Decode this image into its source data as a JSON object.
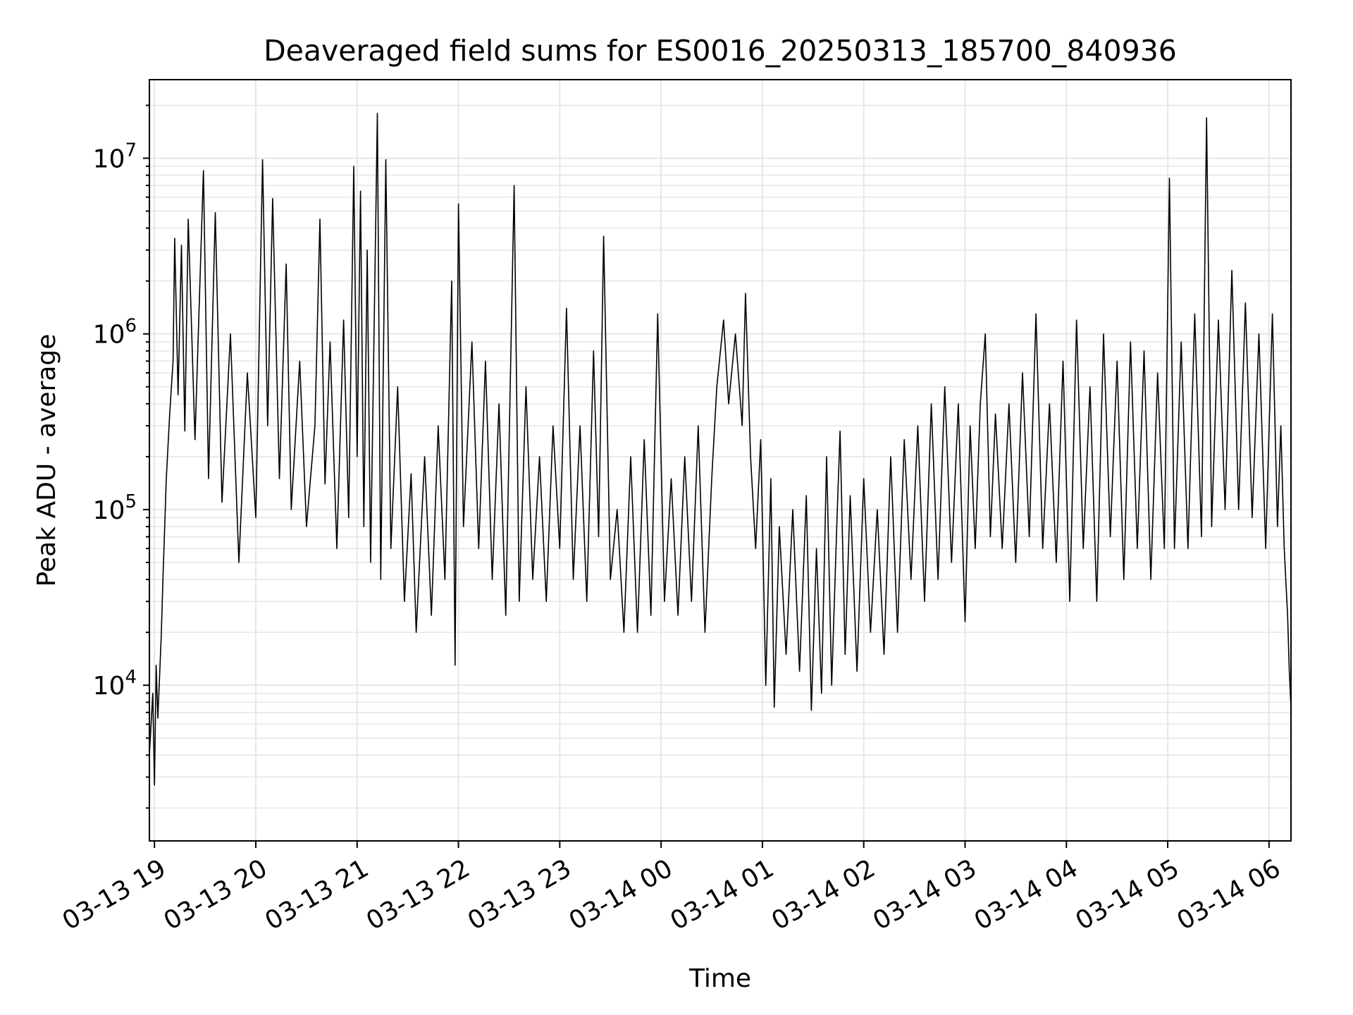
{
  "chart_data": {
    "type": "line",
    "title": "Deaveraged field sums for ES0016_20250313_185700_840936",
    "xlabel": "Time",
    "ylabel": "Peak ADU - average",
    "x_start": "2025-03-13 18:57",
    "x_end": "2025-03-14 06:13",
    "x_ticks": [
      "03-13 19",
      "03-13 20",
      "03-13 21",
      "03-13 22",
      "03-13 23",
      "03-14 00",
      "03-14 01",
      "03-14 02",
      "03-14 03",
      "03-14 04",
      "03-14 05",
      "03-14 06"
    ],
    "y_scale": "log",
    "y_ticks": [
      {
        "base": "10",
        "exp": "4"
      },
      {
        "base": "10",
        "exp": "5"
      },
      {
        "base": "10",
        "exp": "6"
      },
      {
        "base": "10",
        "exp": "7"
      }
    ],
    "ylim": [
      1300,
      28000000
    ],
    "grid": true,
    "line_color": "#000000",
    "grid_color": "#e6e6e6",
    "series": [
      {
        "points": [
          [
            "2025-03-13 18:57",
            4000
          ],
          [
            "2025-03-13 18:59",
            9000
          ],
          [
            "2025-03-13 19:00",
            2700
          ],
          [
            "2025-03-13 19:01",
            13000
          ],
          [
            "2025-03-13 19:02",
            6500
          ],
          [
            "2025-03-13 19:04",
            19000
          ],
          [
            "2025-03-13 19:05",
            40000
          ],
          [
            "2025-03-13 19:07",
            150000
          ],
          [
            "2025-03-13 19:09",
            350000
          ],
          [
            "2025-03-13 19:11",
            700000
          ],
          [
            "2025-03-13 19:12",
            3500000
          ],
          [
            "2025-03-13 19:14",
            450000
          ],
          [
            "2025-03-13 19:16",
            3200000
          ],
          [
            "2025-03-13 19:18",
            280000
          ],
          [
            "2025-03-13 19:20",
            4500000
          ],
          [
            "2025-03-13 19:24",
            250000
          ],
          [
            "2025-03-13 19:29",
            8500000
          ],
          [
            "2025-03-13 19:32",
            150000
          ],
          [
            "2025-03-13 19:36",
            4900000
          ],
          [
            "2025-03-13 19:40",
            110000
          ],
          [
            "2025-03-13 19:45",
            1000000
          ],
          [
            "2025-03-13 19:50",
            50000
          ],
          [
            "2025-03-13 19:55",
            600000
          ],
          [
            "2025-03-13 20:00",
            90000
          ],
          [
            "2025-03-13 20:04",
            9800000
          ],
          [
            "2025-03-13 20:07",
            300000
          ],
          [
            "2025-03-13 20:10",
            5900000
          ],
          [
            "2025-03-13 20:14",
            150000
          ],
          [
            "2025-03-13 20:18",
            2500000
          ],
          [
            "2025-03-13 20:21",
            100000
          ],
          [
            "2025-03-13 20:26",
            700000
          ],
          [
            "2025-03-13 20:30",
            80000
          ],
          [
            "2025-03-13 20:35",
            300000
          ],
          [
            "2025-03-13 20:38",
            4500000
          ],
          [
            "2025-03-13 20:41",
            140000
          ],
          [
            "2025-03-13 20:44",
            900000
          ],
          [
            "2025-03-13 20:48",
            60000
          ],
          [
            "2025-03-13 20:52",
            1200000
          ],
          [
            "2025-03-13 20:55",
            90000
          ],
          [
            "2025-03-13 20:58",
            9000000
          ],
          [
            "2025-03-13 21:00",
            200000
          ],
          [
            "2025-03-13 21:02",
            6500000
          ],
          [
            "2025-03-13 21:04",
            80000
          ],
          [
            "2025-03-13 21:06",
            3000000
          ],
          [
            "2025-03-13 21:08",
            50000
          ],
          [
            "2025-03-13 21:12",
            18000000
          ],
          [
            "2025-03-13 21:14",
            40000
          ],
          [
            "2025-03-13 21:17",
            9800000
          ],
          [
            "2025-03-13 21:20",
            60000
          ],
          [
            "2025-03-13 21:24",
            500000
          ],
          [
            "2025-03-13 21:28",
            30000
          ],
          [
            "2025-03-13 21:32",
            160000
          ],
          [
            "2025-03-13 21:35",
            20000
          ],
          [
            "2025-03-13 21:40",
            200000
          ],
          [
            "2025-03-13 21:44",
            25000
          ],
          [
            "2025-03-13 21:48",
            300000
          ],
          [
            "2025-03-13 21:52",
            40000
          ],
          [
            "2025-03-13 21:56",
            2000000
          ],
          [
            "2025-03-13 21:58",
            13000
          ],
          [
            "2025-03-13 22:00",
            5500000
          ],
          [
            "2025-03-13 22:03",
            80000
          ],
          [
            "2025-03-13 22:08",
            900000
          ],
          [
            "2025-03-13 22:12",
            60000
          ],
          [
            "2025-03-13 22:16",
            700000
          ],
          [
            "2025-03-13 22:20",
            40000
          ],
          [
            "2025-03-13 22:24",
            400000
          ],
          [
            "2025-03-13 22:28",
            25000
          ],
          [
            "2025-03-13 22:33",
            7000000
          ],
          [
            "2025-03-13 22:36",
            30000
          ],
          [
            "2025-03-13 22:40",
            500000
          ],
          [
            "2025-03-13 22:44",
            40000
          ],
          [
            "2025-03-13 22:48",
            200000
          ],
          [
            "2025-03-13 22:52",
            30000
          ],
          [
            "2025-03-13 22:56",
            300000
          ],
          [
            "2025-03-13 23:00",
            60000
          ],
          [
            "2025-03-13 23:04",
            1400000
          ],
          [
            "2025-03-13 23:08",
            40000
          ],
          [
            "2025-03-13 23:12",
            300000
          ],
          [
            "2025-03-13 23:16",
            30000
          ],
          [
            "2025-03-13 23:20",
            800000
          ],
          [
            "2025-03-13 23:23",
            70000
          ],
          [
            "2025-03-13 23:26",
            3600000
          ],
          [
            "2025-03-13 23:30",
            40000
          ],
          [
            "2025-03-13 23:34",
            100000
          ],
          [
            "2025-03-13 23:38",
            20000
          ],
          [
            "2025-03-13 23:42",
            200000
          ],
          [
            "2025-03-13 23:46",
            20000
          ],
          [
            "2025-03-13 23:50",
            250000
          ],
          [
            "2025-03-13 23:54",
            25000
          ],
          [
            "2025-03-13 23:58",
            1300000
          ],
          [
            "2025-03-14 00:02",
            30000
          ],
          [
            "2025-03-14 00:06",
            150000
          ],
          [
            "2025-03-14 00:10",
            25000
          ],
          [
            "2025-03-14 00:14",
            200000
          ],
          [
            "2025-03-14 00:18",
            30000
          ],
          [
            "2025-03-14 00:22",
            300000
          ],
          [
            "2025-03-14 00:26",
            20000
          ],
          [
            "2025-03-14 00:30",
            150000
          ],
          [
            "2025-03-14 00:33",
            500000
          ],
          [
            "2025-03-14 00:37",
            1200000
          ],
          [
            "2025-03-14 00:40",
            400000
          ],
          [
            "2025-03-14 00:44",
            1000000
          ],
          [
            "2025-03-14 00:48",
            300000
          ],
          [
            "2025-03-14 00:50",
            1700000
          ],
          [
            "2025-03-14 00:53",
            200000
          ],
          [
            "2025-03-14 00:56",
            60000
          ],
          [
            "2025-03-14 00:59",
            250000
          ],
          [
            "2025-03-14 01:02",
            10000
          ],
          [
            "2025-03-14 01:05",
            150000
          ],
          [
            "2025-03-14 01:07",
            7500
          ],
          [
            "2025-03-14 01:10",
            80000
          ],
          [
            "2025-03-14 01:14",
            15000
          ],
          [
            "2025-03-14 01:18",
            100000
          ],
          [
            "2025-03-14 01:22",
            12000
          ],
          [
            "2025-03-14 01:26",
            120000
          ],
          [
            "2025-03-14 01:29",
            7200
          ],
          [
            "2025-03-14 01:32",
            60000
          ],
          [
            "2025-03-14 01:35",
            9000
          ],
          [
            "2025-03-14 01:38",
            200000
          ],
          [
            "2025-03-14 01:41",
            10000
          ],
          [
            "2025-03-14 01:44",
            80000
          ],
          [
            "2025-03-14 01:46",
            280000
          ],
          [
            "2025-03-14 01:49",
            15000
          ],
          [
            "2025-03-14 01:52",
            120000
          ],
          [
            "2025-03-14 01:56",
            12000
          ],
          [
            "2025-03-14 02:00",
            150000
          ],
          [
            "2025-03-14 02:04",
            20000
          ],
          [
            "2025-03-14 02:08",
            100000
          ],
          [
            "2025-03-14 02:12",
            15000
          ],
          [
            "2025-03-14 02:16",
            200000
          ],
          [
            "2025-03-14 02:20",
            20000
          ],
          [
            "2025-03-14 02:24",
            250000
          ],
          [
            "2025-03-14 02:28",
            40000
          ],
          [
            "2025-03-14 02:32",
            300000
          ],
          [
            "2025-03-14 02:36",
            30000
          ],
          [
            "2025-03-14 02:40",
            400000
          ],
          [
            "2025-03-14 02:44",
            40000
          ],
          [
            "2025-03-14 02:48",
            500000
          ],
          [
            "2025-03-14 02:52",
            50000
          ],
          [
            "2025-03-14 02:56",
            400000
          ],
          [
            "2025-03-14 03:00",
            23000
          ],
          [
            "2025-03-14 03:03",
            300000
          ],
          [
            "2025-03-14 03:06",
            60000
          ],
          [
            "2025-03-14 03:09",
            400000
          ],
          [
            "2025-03-14 03:12",
            1000000
          ],
          [
            "2025-03-14 03:15",
            70000
          ],
          [
            "2025-03-14 03:18",
            350000
          ],
          [
            "2025-03-14 03:22",
            60000
          ],
          [
            "2025-03-14 03:26",
            400000
          ],
          [
            "2025-03-14 03:30",
            50000
          ],
          [
            "2025-03-14 03:34",
            600000
          ],
          [
            "2025-03-14 03:38",
            70000
          ],
          [
            "2025-03-14 03:42",
            1300000
          ],
          [
            "2025-03-14 03:46",
            60000
          ],
          [
            "2025-03-14 03:50",
            400000
          ],
          [
            "2025-03-14 03:54",
            50000
          ],
          [
            "2025-03-14 03:58",
            700000
          ],
          [
            "2025-03-14 04:02",
            30000
          ],
          [
            "2025-03-14 04:06",
            1200000
          ],
          [
            "2025-03-14 04:10",
            60000
          ],
          [
            "2025-03-14 04:14",
            500000
          ],
          [
            "2025-03-14 04:18",
            30000
          ],
          [
            "2025-03-14 04:22",
            1000000
          ],
          [
            "2025-03-14 04:26",
            70000
          ],
          [
            "2025-03-14 04:30",
            700000
          ],
          [
            "2025-03-14 04:34",
            40000
          ],
          [
            "2025-03-14 04:38",
            900000
          ],
          [
            "2025-03-14 04:42",
            60000
          ],
          [
            "2025-03-14 04:46",
            800000
          ],
          [
            "2025-03-14 04:50",
            40000
          ],
          [
            "2025-03-14 04:54",
            600000
          ],
          [
            "2025-03-14 04:58",
            60000
          ],
          [
            "2025-03-14 05:01",
            7700000
          ],
          [
            "2025-03-14 05:04",
            60000
          ],
          [
            "2025-03-14 05:08",
            900000
          ],
          [
            "2025-03-14 05:12",
            60000
          ],
          [
            "2025-03-14 05:16",
            1300000
          ],
          [
            "2025-03-14 05:20",
            70000
          ],
          [
            "2025-03-14 05:23",
            17000000
          ],
          [
            "2025-03-14 05:26",
            80000
          ],
          [
            "2025-03-14 05:30",
            1200000
          ],
          [
            "2025-03-14 05:34",
            100000
          ],
          [
            "2025-03-14 05:38",
            2300000
          ],
          [
            "2025-03-14 05:42",
            100000
          ],
          [
            "2025-03-14 05:46",
            1500000
          ],
          [
            "2025-03-14 05:50",
            90000
          ],
          [
            "2025-03-14 05:54",
            1000000
          ],
          [
            "2025-03-14 05:58",
            60000
          ],
          [
            "2025-03-14 06:02",
            1300000
          ],
          [
            "2025-03-14 06:05",
            80000
          ],
          [
            "2025-03-14 06:07",
            300000
          ],
          [
            "2025-03-14 06:09",
            60000
          ],
          [
            "2025-03-14 06:11",
            25000
          ],
          [
            "2025-03-14 06:12",
            12000
          ],
          [
            "2025-03-14 06:13",
            7500
          ]
        ]
      }
    ]
  }
}
